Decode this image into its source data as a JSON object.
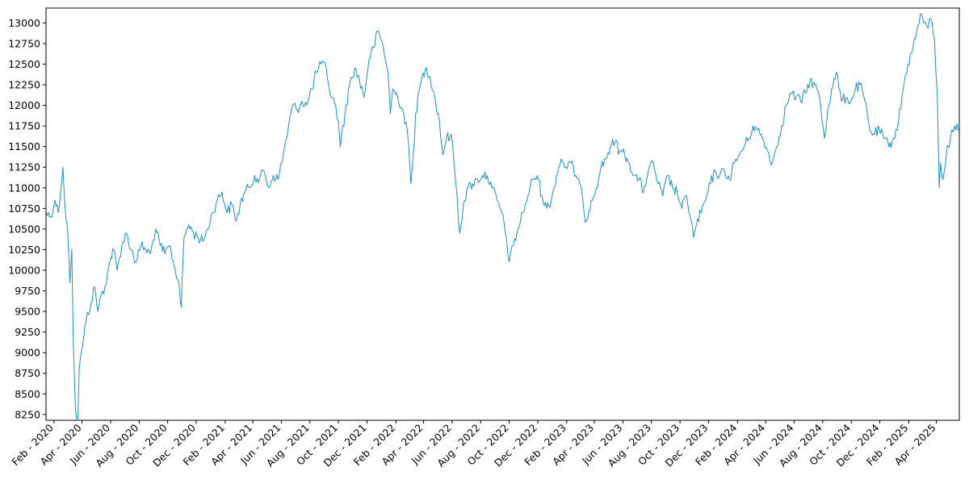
{
  "chart_data": {
    "type": "line",
    "title": "",
    "xlabel": "",
    "ylabel": "",
    "ylim": [
      8180,
      13180
    ],
    "xlim": [
      "2020-01-15",
      "2025-05-20"
    ],
    "grid": false,
    "legend": "none",
    "colors": {
      "line": "#1a8fd1",
      "axis": "#000000",
      "background": "#ffffff"
    },
    "yticks": [
      8250,
      8500,
      8750,
      9000,
      9250,
      9500,
      9750,
      10000,
      10250,
      10500,
      10750,
      11000,
      11250,
      11500,
      11750,
      12000,
      12250,
      12500,
      12750,
      13000
    ],
    "xticks": [
      {
        "date": "2020-02-01",
        "label": "Feb - 2020"
      },
      {
        "date": "2020-04-01",
        "label": "Apr - 2020"
      },
      {
        "date": "2020-06-01",
        "label": "Jun - 2020"
      },
      {
        "date": "2020-08-01",
        "label": "Aug - 2020"
      },
      {
        "date": "2020-10-01",
        "label": "Oct - 2020"
      },
      {
        "date": "2020-12-01",
        "label": "Dec - 2020"
      },
      {
        "date": "2021-02-01",
        "label": "Feb - 2021"
      },
      {
        "date": "2021-04-01",
        "label": "Apr - 2021"
      },
      {
        "date": "2021-06-01",
        "label": "Jun - 2021"
      },
      {
        "date": "2021-08-01",
        "label": "Aug - 2021"
      },
      {
        "date": "2021-10-01",
        "label": "Oct - 2021"
      },
      {
        "date": "2021-12-01",
        "label": "Dec - 2021"
      },
      {
        "date": "2022-02-01",
        "label": "Feb - 2022"
      },
      {
        "date": "2022-04-01",
        "label": "Apr - 2022"
      },
      {
        "date": "2022-06-01",
        "label": "Jun - 2022"
      },
      {
        "date": "2022-08-01",
        "label": "Aug - 2022"
      },
      {
        "date": "2022-10-01",
        "label": "Oct - 2022"
      },
      {
        "date": "2022-12-01",
        "label": "Dec - 2022"
      },
      {
        "date": "2023-02-01",
        "label": "Feb - 2023"
      },
      {
        "date": "2023-04-01",
        "label": "Apr - 2023"
      },
      {
        "date": "2023-06-01",
        "label": "Jun - 2023"
      },
      {
        "date": "2023-08-01",
        "label": "Aug - 2023"
      },
      {
        "date": "2023-10-01",
        "label": "Oct - 2023"
      },
      {
        "date": "2023-12-01",
        "label": "Dec - 2023"
      },
      {
        "date": "2024-02-01",
        "label": "Feb - 2024"
      },
      {
        "date": "2024-04-01",
        "label": "Apr - 2024"
      },
      {
        "date": "2024-06-01",
        "label": "Jun - 2024"
      },
      {
        "date": "2024-08-01",
        "label": "Aug - 2024"
      },
      {
        "date": "2024-10-01",
        "label": "Oct - 2024"
      },
      {
        "date": "2024-12-01",
        "label": "Dec - 2024"
      },
      {
        "date": "2025-02-01",
        "label": "Feb - 2025"
      },
      {
        "date": "2025-04-01",
        "label": "Apr - 2025"
      }
    ],
    "series": [
      {
        "name": "",
        "points": [
          [
            "2020-01-15",
            10700
          ],
          [
            "2020-01-25",
            10650
          ],
          [
            "2020-02-03",
            10850
          ],
          [
            "2020-02-10",
            10700
          ],
          [
            "2020-02-20",
            11250
          ],
          [
            "2020-02-24",
            10800
          ],
          [
            "2020-03-01",
            10500
          ],
          [
            "2020-03-06",
            9850
          ],
          [
            "2020-03-10",
            10250
          ],
          [
            "2020-03-13",
            9200
          ],
          [
            "2020-03-18",
            8300
          ],
          [
            "2020-03-20",
            8200
          ],
          [
            "2020-03-23",
            8200
          ],
          [
            "2020-03-26",
            8800
          ],
          [
            "2020-04-01",
            9050
          ],
          [
            "2020-04-10",
            9400
          ],
          [
            "2020-04-20",
            9600
          ],
          [
            "2020-04-28",
            9800
          ],
          [
            "2020-05-05",
            9500
          ],
          [
            "2020-05-12",
            9700
          ],
          [
            "2020-05-20",
            9800
          ],
          [
            "2020-06-01",
            10150
          ],
          [
            "2020-06-08",
            10250
          ],
          [
            "2020-06-15",
            10000
          ],
          [
            "2020-06-25",
            10300
          ],
          [
            "2020-07-05",
            10450
          ],
          [
            "2020-07-15",
            10250
          ],
          [
            "2020-07-25",
            10100
          ],
          [
            "2020-08-05",
            10300
          ],
          [
            "2020-08-15",
            10250
          ],
          [
            "2020-08-25",
            10200
          ],
          [
            "2020-09-05",
            10500
          ],
          [
            "2020-09-15",
            10300
          ],
          [
            "2020-09-25",
            10200
          ],
          [
            "2020-10-05",
            10300
          ],
          [
            "2020-10-15",
            10050
          ],
          [
            "2020-10-25",
            9850
          ],
          [
            "2020-10-30",
            9550
          ],
          [
            "2020-11-05",
            10400
          ],
          [
            "2020-11-15",
            10550
          ],
          [
            "2020-11-25",
            10450
          ],
          [
            "2020-12-05",
            10400
          ],
          [
            "2020-12-15",
            10350
          ],
          [
            "2020-12-25",
            10500
          ],
          [
            "2021-01-05",
            10700
          ],
          [
            "2021-01-15",
            10850
          ],
          [
            "2021-01-25",
            10950
          ],
          [
            "2021-02-05",
            10700
          ],
          [
            "2021-02-15",
            10800
          ],
          [
            "2021-02-25",
            10600
          ],
          [
            "2021-03-05",
            10800
          ],
          [
            "2021-03-15",
            10950
          ],
          [
            "2021-03-25",
            11000
          ],
          [
            "2021-04-05",
            11150
          ],
          [
            "2021-04-15",
            11100
          ],
          [
            "2021-04-25",
            11200
          ],
          [
            "2021-05-05",
            11000
          ],
          [
            "2021-05-15",
            11150
          ],
          [
            "2021-05-25",
            11100
          ],
          [
            "2021-06-05",
            11400
          ],
          [
            "2021-06-15",
            11700
          ],
          [
            "2021-06-25",
            12000
          ],
          [
            "2021-07-05",
            11950
          ],
          [
            "2021-07-15",
            12050
          ],
          [
            "2021-07-25",
            12000
          ],
          [
            "2021-08-05",
            12200
          ],
          [
            "2021-08-15",
            12400
          ],
          [
            "2021-08-25",
            12500
          ],
          [
            "2021-09-05",
            12450
          ],
          [
            "2021-09-15",
            12100
          ],
          [
            "2021-09-25",
            12000
          ],
          [
            "2021-10-01",
            11800
          ],
          [
            "2021-10-05",
            11500
          ],
          [
            "2021-10-15",
            11900
          ],
          [
            "2021-10-25",
            12250
          ],
          [
            "2021-11-05",
            12450
          ],
          [
            "2021-11-15",
            12300
          ],
          [
            "2021-11-25",
            12100
          ],
          [
            "2021-12-05",
            12550
          ],
          [
            "2021-12-15",
            12700
          ],
          [
            "2021-12-25",
            12900
          ],
          [
            "2022-01-05",
            12700
          ],
          [
            "2022-01-15",
            12400
          ],
          [
            "2022-01-20",
            11900
          ],
          [
            "2022-01-25",
            12200
          ],
          [
            "2022-02-05",
            12100
          ],
          [
            "2022-02-15",
            11950
          ],
          [
            "2022-02-25",
            11700
          ],
          [
            "2022-03-05",
            11050
          ],
          [
            "2022-03-10",
            11400
          ],
          [
            "2022-03-15",
            11900
          ],
          [
            "2022-03-25",
            12250
          ],
          [
            "2022-04-05",
            12450
          ],
          [
            "2022-04-15",
            12350
          ],
          [
            "2022-04-25",
            12100
          ],
          [
            "2022-05-05",
            11800
          ],
          [
            "2022-05-12",
            11400
          ],
          [
            "2022-05-20",
            11600
          ],
          [
            "2022-05-30",
            11650
          ],
          [
            "2022-06-05",
            11300
          ],
          [
            "2022-06-10",
            11000
          ],
          [
            "2022-06-17",
            10450
          ],
          [
            "2022-06-25",
            10800
          ],
          [
            "2022-07-05",
            11000
          ],
          [
            "2022-07-15",
            11050
          ],
          [
            "2022-07-25",
            11100
          ],
          [
            "2022-08-05",
            11150
          ],
          [
            "2022-08-15",
            11150
          ],
          [
            "2022-08-25",
            11000
          ],
          [
            "2022-09-05",
            10850
          ],
          [
            "2022-09-15",
            10700
          ],
          [
            "2022-09-25",
            10400
          ],
          [
            "2022-10-01",
            10100
          ],
          [
            "2022-10-10",
            10300
          ],
          [
            "2022-10-20",
            10500
          ],
          [
            "2022-10-30",
            10700
          ],
          [
            "2022-11-10",
            10900
          ],
          [
            "2022-11-20",
            11100
          ],
          [
            "2022-11-30",
            11150
          ],
          [
            "2022-12-10",
            10900
          ],
          [
            "2022-12-20",
            10750
          ],
          [
            "2022-12-30",
            10850
          ],
          [
            "2023-01-10",
            11150
          ],
          [
            "2023-01-20",
            11350
          ],
          [
            "2023-01-30",
            11250
          ],
          [
            "2023-02-10",
            11300
          ],
          [
            "2023-02-20",
            11150
          ],
          [
            "2023-03-01",
            11050
          ],
          [
            "2023-03-10",
            10700
          ],
          [
            "2023-03-15",
            10600
          ],
          [
            "2023-03-25",
            10850
          ],
          [
            "2023-04-05",
            11000
          ],
          [
            "2023-04-15",
            11250
          ],
          [
            "2023-04-25",
            11350
          ],
          [
            "2023-05-05",
            11500
          ],
          [
            "2023-05-15",
            11550
          ],
          [
            "2023-05-25",
            11450
          ],
          [
            "2023-06-05",
            11400
          ],
          [
            "2023-06-15",
            11300
          ],
          [
            "2023-06-25",
            11150
          ],
          [
            "2023-07-05",
            11100
          ],
          [
            "2023-07-15",
            10950
          ],
          [
            "2023-07-25",
            11200
          ],
          [
            "2023-08-05",
            11300
          ],
          [
            "2023-08-15",
            11050
          ],
          [
            "2023-08-25",
            10900
          ],
          [
            "2023-09-05",
            11150
          ],
          [
            "2023-09-15",
            11000
          ],
          [
            "2023-09-25",
            10950
          ],
          [
            "2023-10-05",
            10750
          ],
          [
            "2023-10-15",
            10900
          ],
          [
            "2023-10-25",
            10600
          ],
          [
            "2023-10-30",
            10400
          ],
          [
            "2023-11-05",
            10550
          ],
          [
            "2023-11-15",
            10700
          ],
          [
            "2023-11-25",
            10850
          ],
          [
            "2023-12-05",
            11050
          ],
          [
            "2023-12-15",
            11200
          ],
          [
            "2023-12-25",
            11150
          ],
          [
            "2024-01-05",
            11200
          ],
          [
            "2024-01-15",
            11100
          ],
          [
            "2024-01-25",
            11300
          ],
          [
            "2024-02-05",
            11400
          ],
          [
            "2024-02-15",
            11500
          ],
          [
            "2024-02-25",
            11600
          ],
          [
            "2024-03-05",
            11750
          ],
          [
            "2024-03-15",
            11700
          ],
          [
            "2024-03-25",
            11600
          ],
          [
            "2024-04-05",
            11450
          ],
          [
            "2024-04-15",
            11300
          ],
          [
            "2024-04-25",
            11500
          ],
          [
            "2024-05-05",
            11750
          ],
          [
            "2024-05-15",
            12000
          ],
          [
            "2024-05-25",
            12150
          ],
          [
            "2024-06-05",
            12100
          ],
          [
            "2024-06-15",
            12050
          ],
          [
            "2024-06-25",
            12150
          ],
          [
            "2024-07-05",
            12300
          ],
          [
            "2024-07-15",
            12250
          ],
          [
            "2024-07-25",
            12100
          ],
          [
            "2024-08-05",
            11600
          ],
          [
            "2024-08-12",
            11950
          ],
          [
            "2024-08-20",
            12200
          ],
          [
            "2024-08-30",
            12400
          ],
          [
            "2024-09-10",
            12050
          ],
          [
            "2024-09-20",
            12100
          ],
          [
            "2024-09-30",
            12050
          ],
          [
            "2024-10-10",
            12200
          ],
          [
            "2024-10-20",
            12250
          ],
          [
            "2024-10-30",
            12050
          ],
          [
            "2024-11-10",
            11700
          ],
          [
            "2024-11-20",
            11650
          ],
          [
            "2024-11-30",
            11700
          ],
          [
            "2024-12-10",
            11600
          ],
          [
            "2024-12-20",
            11500
          ],
          [
            "2024-12-30",
            11600
          ],
          [
            "2025-01-10",
            11800
          ],
          [
            "2025-01-20",
            12200
          ],
          [
            "2025-01-30",
            12500
          ],
          [
            "2025-02-10",
            12700
          ],
          [
            "2025-02-20",
            12950
          ],
          [
            "2025-03-01",
            13100
          ],
          [
            "2025-03-05",
            13000
          ],
          [
            "2025-03-12",
            12950
          ],
          [
            "2025-03-20",
            13050
          ],
          [
            "2025-03-28",
            12800
          ],
          [
            "2025-04-03",
            12100
          ],
          [
            "2025-04-07",
            11000
          ],
          [
            "2025-04-10",
            11300
          ],
          [
            "2025-04-15",
            11100
          ],
          [
            "2025-04-22",
            11400
          ],
          [
            "2025-05-01",
            11600
          ],
          [
            "2025-05-10",
            11750
          ],
          [
            "2025-05-20",
            11700
          ]
        ]
      }
    ]
  }
}
